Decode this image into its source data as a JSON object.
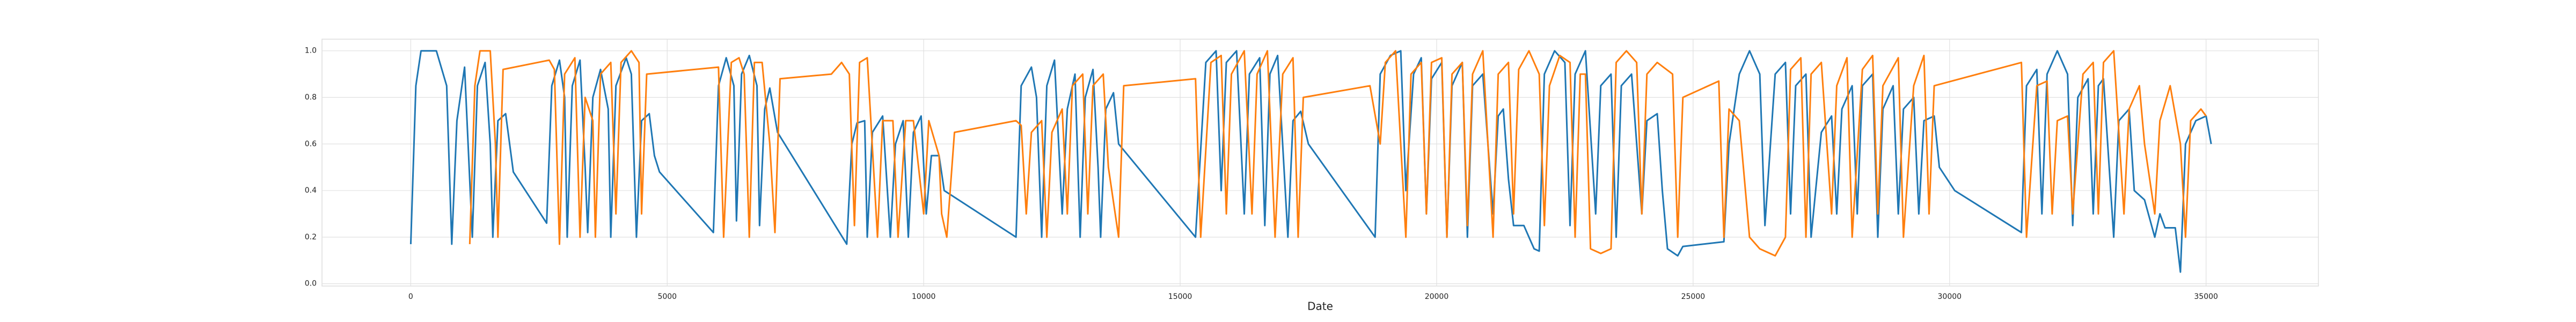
{
  "chart_data": {
    "type": "line",
    "x_label": "Date",
    "xlim": [
      -1730,
      37190
    ],
    "ylim": [
      -0.01,
      1.05
    ],
    "xticks": [
      0,
      5000,
      10000,
      15000,
      20000,
      25000,
      30000,
      35000
    ],
    "yticks": [
      {
        "value": 0,
        "label": "0.0"
      },
      0.2,
      0.4,
      0.6,
      0.8,
      {
        "value": 1,
        "label": "1.0"
      }
    ],
    "grid": true,
    "series": [
      {
        "color": "#1f77b4",
        "x": [
          0,
          100,
          200,
          500,
          700,
          800,
          900,
          1050,
          1200,
          1300,
          1450,
          1550,
          1600,
          1700,
          1850,
          2000,
          2650,
          2750,
          2900,
          3000,
          3050,
          3150,
          3300,
          3400,
          3450,
          3550,
          3700,
          3850,
          3900,
          4000,
          4200,
          4300,
          4400,
          4500,
          4650,
          4750,
          4850,
          5900,
          6000,
          6150,
          6300,
          6350,
          6450,
          6600,
          6750,
          6800,
          6900,
          7000,
          7150,
          8500,
          8600,
          8700,
          8850,
          8900,
          9000,
          9200,
          9350,
          9450,
          9600,
          9700,
          9800,
          9950,
          10050,
          10150,
          10300,
          10400,
          11800,
          11900,
          12100,
          12200,
          12300,
          12400,
          12550,
          12700,
          12800,
          12950,
          13050,
          13150,
          13300,
          13400,
          13450,
          13550,
          13700,
          13800,
          15300,
          15500,
          15700,
          15800,
          15900,
          16100,
          16250,
          16350,
          16550,
          16650,
          16750,
          16900,
          17100,
          17200,
          17350,
          17500,
          18800,
          18900,
          19100,
          19300,
          19400,
          19550,
          19700,
          19800,
          19900,
          20100,
          20200,
          20300,
          20500,
          20600,
          20700,
          20900,
          21100,
          21200,
          21300,
          21400,
          21500,
          21700,
          21800,
          21900,
          22000,
          22100,
          22300,
          22500,
          22600,
          22700,
          22900,
          23100,
          23200,
          23400,
          23500,
          23600,
          23800,
          24000,
          24100,
          24300,
          24400,
          24500,
          24700,
          24800,
          25600,
          25700,
          25900,
          26100,
          26300,
          26400,
          26600,
          26800,
          26900,
          27000,
          27200,
          27300,
          27500,
          27700,
          27800,
          27900,
          28100,
          28200,
          28300,
          28500,
          28600,
          28700,
          28900,
          29000,
          29100,
          29300,
          29400,
          29500,
          29700,
          29800,
          30100,
          31400,
          31500,
          31700,
          31800,
          31900,
          32100,
          32300,
          32400,
          32500,
          32700,
          32800,
          32900,
          33000,
          33200,
          33300,
          33500,
          33600,
          33800,
          34000,
          34100,
          34200,
          34400,
          34500,
          34600,
          34800,
          35000,
          35100
        ],
        "values": [
          0.17,
          0.85,
          1.0,
          1.0,
          0.85,
          0.17,
          0.7,
          0.93,
          0.2,
          0.85,
          0.95,
          0.6,
          0.2,
          0.7,
          0.73,
          0.48,
          0.26,
          0.85,
          0.96,
          0.8,
          0.2,
          0.85,
          0.96,
          0.5,
          0.22,
          0.8,
          0.92,
          0.75,
          0.2,
          0.85,
          0.97,
          0.9,
          0.2,
          0.7,
          0.73,
          0.55,
          0.48,
          0.22,
          0.85,
          0.97,
          0.85,
          0.27,
          0.9,
          0.98,
          0.85,
          0.25,
          0.75,
          0.84,
          0.65,
          0.17,
          0.6,
          0.69,
          0.7,
          0.2,
          0.65,
          0.72,
          0.2,
          0.6,
          0.7,
          0.2,
          0.65,
          0.72,
          0.3,
          0.55,
          0.55,
          0.4,
          0.2,
          0.85,
          0.93,
          0.8,
          0.2,
          0.85,
          0.96,
          0.3,
          0.75,
          0.9,
          0.2,
          0.8,
          0.92,
          0.5,
          0.2,
          0.75,
          0.82,
          0.6,
          0.2,
          0.95,
          1.0,
          0.4,
          0.95,
          1.0,
          0.3,
          0.9,
          0.97,
          0.25,
          0.9,
          0.98,
          0.2,
          0.7,
          0.74,
          0.6,
          0.2,
          0.9,
          0.98,
          1.0,
          0.4,
          0.9,
          0.97,
          0.3,
          0.88,
          0.95,
          0.2,
          0.85,
          0.95,
          0.2,
          0.85,
          0.9,
          0.3,
          0.72,
          0.75,
          0.45,
          0.25,
          0.25,
          0.2,
          0.15,
          0.14,
          0.9,
          1.0,
          0.95,
          0.25,
          0.9,
          1.0,
          0.3,
          0.85,
          0.9,
          0.2,
          0.85,
          0.9,
          0.3,
          0.7,
          0.73,
          0.4,
          0.15,
          0.12,
          0.16,
          0.18,
          0.6,
          0.9,
          1.0,
          0.9,
          0.25,
          0.9,
          0.95,
          0.3,
          0.85,
          0.9,
          0.2,
          0.65,
          0.72,
          0.3,
          0.75,
          0.85,
          0.3,
          0.85,
          0.9,
          0.2,
          0.75,
          0.85,
          0.3,
          0.75,
          0.8,
          0.3,
          0.7,
          0.72,
          0.5,
          0.4,
          0.22,
          0.85,
          0.92,
          0.3,
          0.9,
          1.0,
          0.9,
          0.25,
          0.8,
          0.88,
          0.3,
          0.85,
          0.88,
          0.2,
          0.7,
          0.75,
          0.4,
          0.36,
          0.2,
          0.3,
          0.24,
          0.24,
          0.05,
          0.6,
          0.7,
          0.72,
          0.6
        ]
      },
      {
        "color": "#ff7f0e",
        "x": [
          1150,
          1250,
          1350,
          1550,
          1650,
          1700,
          1800,
          2700,
          2800,
          2900,
          3000,
          3200,
          3300,
          3400,
          3550,
          3600,
          3700,
          3900,
          4000,
          4100,
          4300,
          4450,
          4500,
          4600,
          6000,
          6100,
          6250,
          6400,
          6500,
          6600,
          6700,
          6850,
          7000,
          7100,
          7200,
          8200,
          8400,
          8550,
          8650,
          8750,
          8900,
          9100,
          9200,
          9400,
          9500,
          9650,
          9800,
          10000,
          10100,
          10300,
          10350,
          10450,
          10600,
          11800,
          11900,
          12000,
          12100,
          12300,
          12400,
          12500,
          12700,
          12800,
          12900,
          13100,
          13200,
          13300,
          13500,
          13600,
          13800,
          13900,
          15300,
          15400,
          15600,
          15800,
          15900,
          16000,
          16250,
          16400,
          16500,
          16700,
          16850,
          17000,
          17200,
          17300,
          17400,
          18700,
          18900,
          19000,
          19200,
          19400,
          19500,
          19700,
          19800,
          19900,
          20100,
          20200,
          20300,
          20500,
          20600,
          20700,
          20900,
          21100,
          21200,
          21400,
          21500,
          21600,
          21800,
          22000,
          22100,
          22200,
          22400,
          22600,
          22700,
          22800,
          22900,
          23000,
          23200,
          23400,
          23500,
          23700,
          23900,
          24000,
          24100,
          24300,
          24600,
          24700,
          24800,
          25500,
          25600,
          25700,
          25900,
          26100,
          26300,
          26600,
          26800,
          26900,
          27100,
          27200,
          27300,
          27500,
          27700,
          27800,
          28000,
          28100,
          28300,
          28500,
          28600,
          28700,
          29000,
          29100,
          29300,
          29500,
          29600,
          29700,
          31400,
          31500,
          31700,
          31900,
          32000,
          32100,
          32300,
          32400,
          32600,
          32800,
          32900,
          33000,
          33200,
          33400,
          33500,
          33700,
          33800,
          34000,
          34100,
          34300,
          34500,
          34600,
          34700,
          34900,
          35000
        ],
        "values": [
          0.17,
          0.85,
          1.0,
          1.0,
          0.6,
          0.2,
          0.92,
          0.96,
          0.92,
          0.17,
          0.9,
          0.97,
          0.2,
          0.8,
          0.7,
          0.2,
          0.9,
          0.95,
          0.3,
          0.95,
          1.0,
          0.95,
          0.3,
          0.9,
          0.93,
          0.2,
          0.95,
          0.97,
          0.9,
          0.2,
          0.95,
          0.95,
          0.6,
          0.22,
          0.88,
          0.9,
          0.95,
          0.9,
          0.25,
          0.95,
          0.97,
          0.2,
          0.7,
          0.7,
          0.2,
          0.7,
          0.7,
          0.3,
          0.7,
          0.55,
          0.3,
          0.2,
          0.65,
          0.7,
          0.68,
          0.3,
          0.65,
          0.7,
          0.2,
          0.65,
          0.75,
          0.3,
          0.85,
          0.9,
          0.3,
          0.85,
          0.9,
          0.5,
          0.2,
          0.85,
          0.88,
          0.2,
          0.95,
          0.98,
          0.3,
          0.9,
          1.0,
          0.3,
          0.9,
          1.0,
          0.2,
          0.9,
          0.97,
          0.2,
          0.8,
          0.85,
          0.6,
          0.95,
          1.0,
          0.2,
          0.9,
          0.95,
          0.3,
          0.95,
          0.97,
          0.2,
          0.9,
          0.95,
          0.25,
          0.9,
          1.0,
          0.2,
          0.9,
          0.95,
          0.3,
          0.92,
          1.0,
          0.9,
          0.25,
          0.85,
          0.98,
          0.95,
          0.2,
          0.9,
          0.9,
          0.15,
          0.13,
          0.15,
          0.95,
          1.0,
          0.95,
          0.3,
          0.9,
          0.95,
          0.9,
          0.2,
          0.8,
          0.87,
          0.2,
          0.75,
          0.7,
          0.2,
          0.15,
          0.12,
          0.2,
          0.92,
          0.97,
          0.2,
          0.9,
          0.95,
          0.3,
          0.85,
          0.97,
          0.2,
          0.92,
          0.98,
          0.3,
          0.85,
          0.97,
          0.2,
          0.85,
          0.98,
          0.3,
          0.85,
          0.95,
          0.2,
          0.85,
          0.87,
          0.3,
          0.7,
          0.72,
          0.3,
          0.9,
          0.95,
          0.3,
          0.95,
          1.0,
          0.3,
          0.75,
          0.85,
          0.6,
          0.3,
          0.7,
          0.85,
          0.6,
          0.2,
          0.7,
          0.75,
          0.72
        ]
      }
    ]
  }
}
